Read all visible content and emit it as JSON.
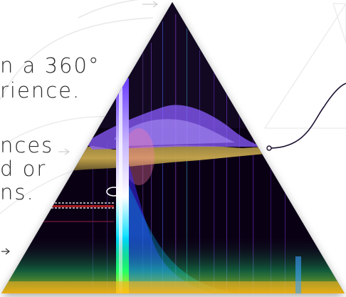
{
  "intro": {
    "line1": "n a 360°",
    "line2": "rience."
  },
  "features": {
    "line1": "nces",
    "line2": "d or",
    "line3": "ns."
  },
  "colors": {
    "text": "#2c2c2c",
    "spectrogram_background": "#0a0014",
    "accent_curve": "#1c1030"
  },
  "icons": [
    "arrow-icon",
    "connector-dot-icon",
    "curve-line-icon"
  ]
}
